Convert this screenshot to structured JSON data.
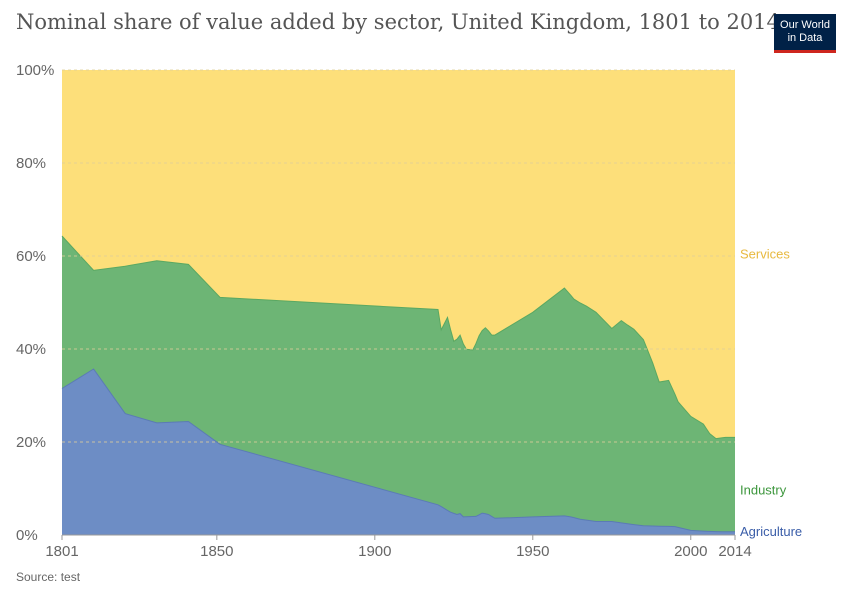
{
  "title": "Nominal share of value added by sector, United Kingdom, 1801 to 2014",
  "logo": {
    "line1": "Our World",
    "line2": "in Data"
  },
  "source": "Source: test",
  "colors": {
    "agriculture": "#6d8dc5",
    "industry": "#6db575",
    "services": "#fddf7a",
    "agriculture_text": "#3a5da8",
    "industry_text": "#3c963c",
    "services_text": "#e8b93f"
  },
  "chart_data": {
    "type": "area",
    "stacked": true,
    "title": "Nominal share of value added by sector, United Kingdom, 1801 to 2014",
    "xlabel": "",
    "ylabel": "",
    "xlim": [
      1801,
      2014
    ],
    "ylim": [
      0,
      100
    ],
    "x_ticks": [
      "1801",
      "1850",
      "1900",
      "1950",
      "2000",
      "2014"
    ],
    "y_ticks": [
      "0%",
      "20%",
      "40%",
      "60%",
      "80%",
      "100%"
    ],
    "grid": true,
    "series": [
      {
        "name": "Agriculture",
        "points": [
          [
            1801,
            31.5
          ],
          [
            1811,
            35.7
          ],
          [
            1821,
            26.1
          ],
          [
            1831,
            24.1
          ],
          [
            1841,
            24.4
          ],
          [
            1851,
            19.5
          ],
          [
            1920,
            6.5
          ],
          [
            1921,
            6.1
          ],
          [
            1924,
            4.9
          ],
          [
            1926,
            4.4
          ],
          [
            1927,
            4.6
          ],
          [
            1928,
            3.9
          ],
          [
            1932,
            4.0
          ],
          [
            1934,
            4.7
          ],
          [
            1936,
            4.4
          ],
          [
            1938,
            3.6
          ],
          [
            1950,
            3.9
          ],
          [
            1960,
            4.1
          ],
          [
            1962,
            3.9
          ],
          [
            1965,
            3.4
          ],
          [
            1970,
            2.9
          ],
          [
            1975,
            2.9
          ],
          [
            1980,
            2.4
          ],
          [
            1985,
            2.0
          ],
          [
            1990,
            1.9
          ],
          [
            1995,
            1.8
          ],
          [
            2000,
            1.0
          ],
          [
            2005,
            0.8
          ],
          [
            2010,
            0.7
          ],
          [
            2014,
            0.7
          ]
        ]
      },
      {
        "name": "Industry",
        "points": [
          [
            1801,
            32.8
          ],
          [
            1811,
            21.2
          ],
          [
            1821,
            31.7
          ],
          [
            1831,
            34.9
          ],
          [
            1841,
            33.8
          ],
          [
            1851,
            31.6
          ],
          [
            1920,
            42.0
          ],
          [
            1921,
            38.0
          ],
          [
            1923,
            41.5
          ],
          [
            1925,
            37.0
          ],
          [
            1927,
            38.4
          ],
          [
            1929,
            36.0
          ],
          [
            1931,
            35.8
          ],
          [
            1933,
            38.5
          ],
          [
            1935,
            40.0
          ],
          [
            1937,
            39.0
          ],
          [
            1950,
            44.0
          ],
          [
            1960,
            49.0
          ],
          [
            1963,
            47.0
          ],
          [
            1967,
            46.0
          ],
          [
            1970,
            45.0
          ],
          [
            1975,
            41.5
          ],
          [
            1978,
            43.5
          ],
          [
            1982,
            42.0
          ],
          [
            1985,
            40.0
          ],
          [
            1988,
            35.0
          ],
          [
            1990,
            31.0
          ],
          [
            1993,
            31.4
          ],
          [
            1996,
            27.0
          ],
          [
            2000,
            24.5
          ],
          [
            2004,
            23.0
          ],
          [
            2006,
            21.0
          ],
          [
            2008,
            20.0
          ],
          [
            2011,
            20.3
          ],
          [
            2014,
            20.3
          ]
        ]
      },
      {
        "name": "Services",
        "points": [
          [
            1801,
            35.7
          ],
          [
            1811,
            43.1
          ],
          [
            1821,
            42.2
          ],
          [
            1831,
            41.0
          ],
          [
            1841,
            41.8
          ],
          [
            1851,
            48.9
          ],
          [
            1920,
            51.5
          ],
          [
            1921,
            55.9
          ],
          [
            1923,
            52.8
          ],
          [
            1925,
            58.6
          ],
          [
            1927,
            57.0
          ],
          [
            1929,
            60.1
          ],
          [
            1931,
            60.2
          ],
          [
            1933,
            56.8
          ],
          [
            1935,
            55.6
          ],
          [
            1937,
            56.9
          ],
          [
            1950,
            52.1
          ],
          [
            1960,
            46.9
          ],
          [
            1963,
            49.1
          ],
          [
            1967,
            50.6
          ],
          [
            1970,
            52.1
          ],
          [
            1975,
            55.6
          ],
          [
            1978,
            54.0
          ],
          [
            1982,
            55.8
          ],
          [
            1985,
            58.0
          ],
          [
            1988,
            63.0
          ],
          [
            1990,
            67.1
          ],
          [
            1993,
            66.8
          ],
          [
            1996,
            71.3
          ],
          [
            2000,
            74.5
          ],
          [
            2004,
            76.2
          ],
          [
            2006,
            78.3
          ],
          [
            2008,
            79.3
          ],
          [
            2011,
            79.0
          ],
          [
            2014,
            79.0
          ]
        ]
      }
    ],
    "series_labels": [
      "Services",
      "Industry",
      "Agriculture"
    ]
  }
}
